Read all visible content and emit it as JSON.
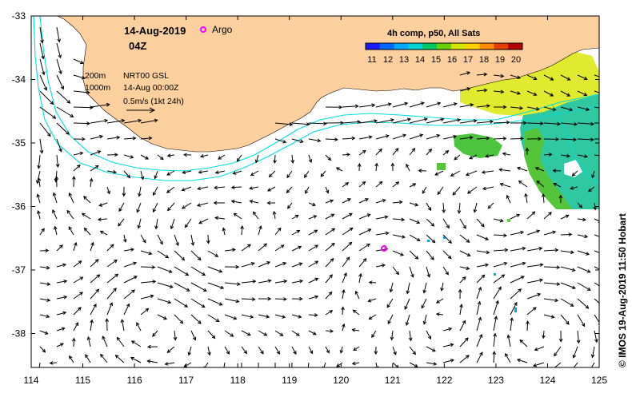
{
  "map": {
    "date": "14-Aug-2019",
    "time": "04Z",
    "legend_argo": "Argo",
    "depth_200": "200m",
    "depth_1000": "1000m",
    "product": "NRT00 GSL",
    "product_time": "14-Aug 00:00Z",
    "scale_label": "0.5m/s (1kt 24h)",
    "credit": "© IMOS 19-Aug-2019 11:50 Hobart",
    "colorbar": {
      "title": "4h comp, p50, All Sats",
      "ticks": [
        "11",
        "12",
        "13",
        "14",
        "15",
        "16",
        "17",
        "18",
        "19",
        "20"
      ],
      "colors": [
        "#1a1aff",
        "#0066ff",
        "#00a8ff",
        "#00d2d2",
        "#00c864",
        "#66d200",
        "#d2e600",
        "#ffd200",
        "#ff8c00",
        "#e63c00",
        "#b40000"
      ]
    },
    "x_ticks": [
      "114",
      "115",
      "116",
      "117",
      "118",
      "119",
      "120",
      "121",
      "122",
      "123",
      "124",
      "125"
    ],
    "y_ticks": [
      "-33",
      "-34",
      "-35",
      "-36",
      "-37",
      "-38"
    ],
    "colors": {
      "land": "#fccf9e",
      "coast_line": "#00dede",
      "argo": "#ff00ff",
      "sst_green": "#33cc66",
      "sst_yellow": "#e0ea2e",
      "sst_teal": "#2fc8a0"
    }
  }
}
